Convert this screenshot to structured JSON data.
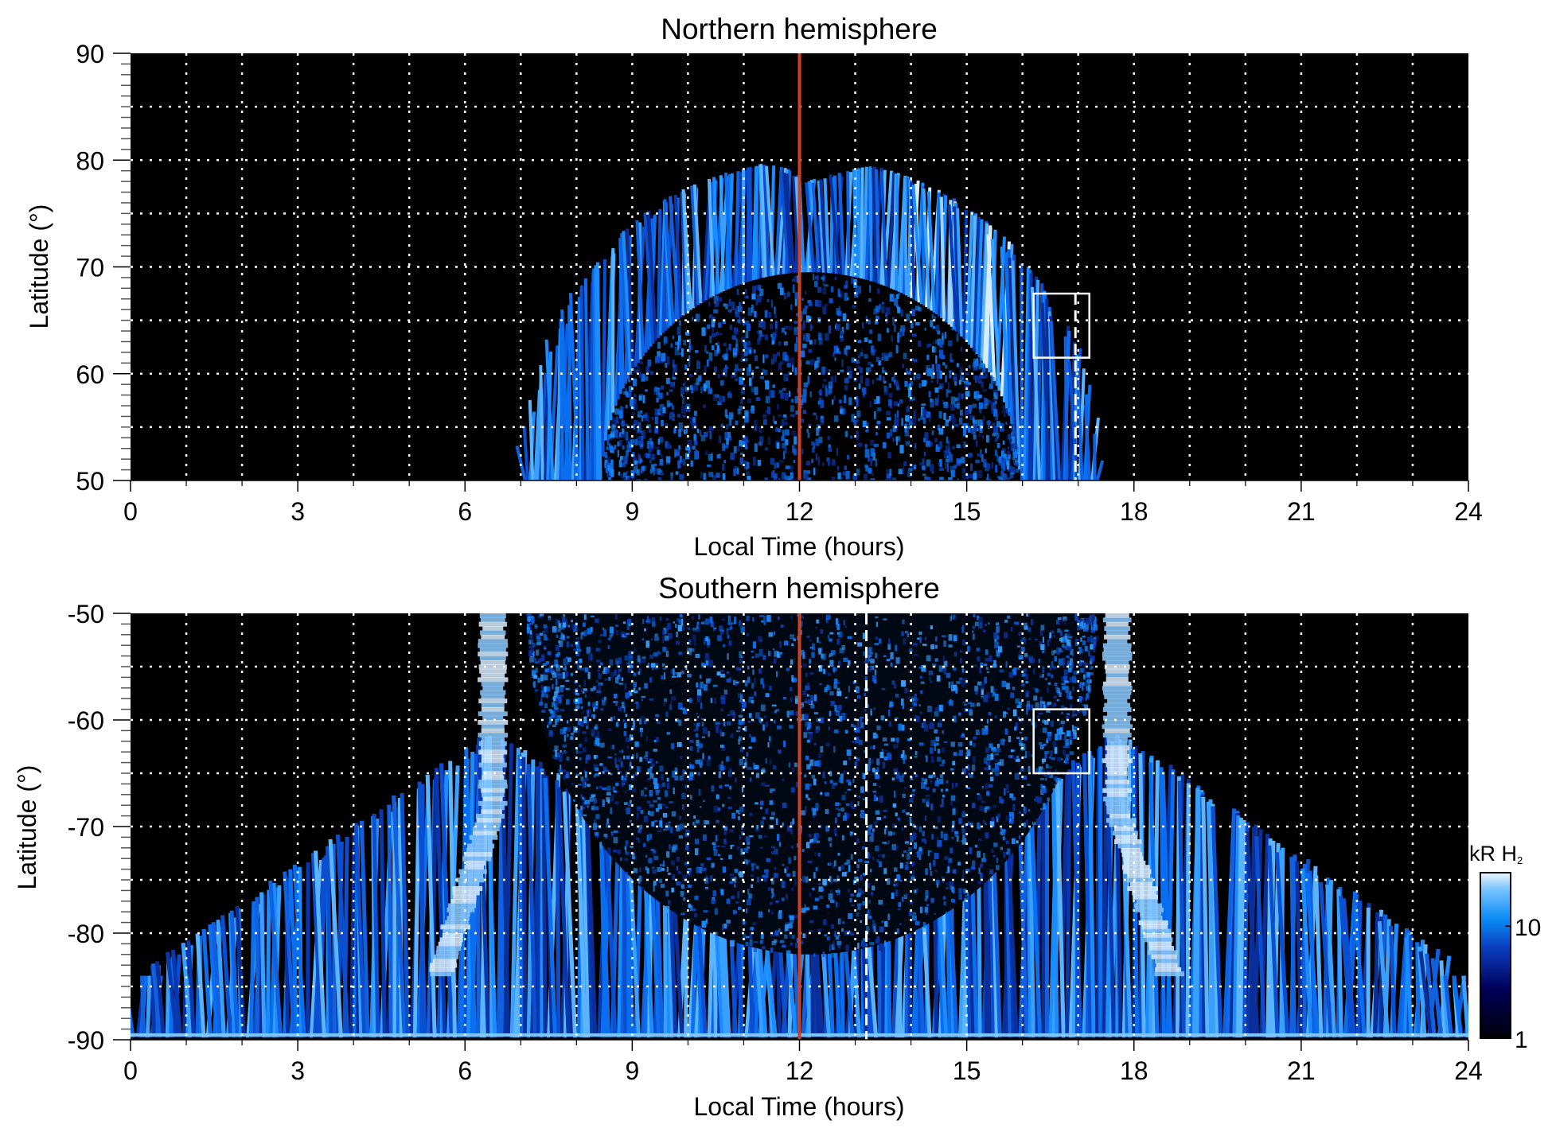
{
  "chart_data": [
    {
      "type": "heatmap",
      "title": "Northern hemisphere",
      "xlabel": "Local Time (hours)",
      "ylabel": "Latitude (°)",
      "xlim": [
        0,
        24
      ],
      "ylim": [
        50,
        90
      ],
      "xticks": [
        "0",
        "3",
        "6",
        "9",
        "12",
        "15",
        "18",
        "21",
        "24"
      ],
      "yticks": [
        "50",
        "60",
        "70",
        "80",
        "90"
      ],
      "grid": true,
      "noon_line_lt": 12,
      "dashed_line_lt": 16.95,
      "box": {
        "lt": [
          16.2,
          17.2
        ],
        "lat": [
          61.5,
          67.5
        ]
      },
      "oval": {
        "outer_lt_range": [
          7.0,
          17.3
        ],
        "outer_peak_lat": 80,
        "inner_lt_range": [
          8.5,
          15.9
        ],
        "inner_peak_lat": 69
      }
    },
    {
      "type": "heatmap",
      "title": "Southern hemisphere",
      "xlabel": "Local Time (hours)",
      "ylabel": "Latitude (°)",
      "xlim": [
        0,
        24
      ],
      "ylim": [
        -90,
        -50
      ],
      "xticks": [
        "0",
        "3",
        "6",
        "9",
        "12",
        "15",
        "18",
        "21",
        "24"
      ],
      "yticks": [
        "-90",
        "-80",
        "-70",
        "-60",
        "-50"
      ],
      "grid": true,
      "noon_line_lt": 12,
      "dashed_line_lt": 13.2,
      "box": {
        "lt": [
          16.2,
          17.2
        ],
        "lat": [
          -65,
          -59
        ]
      },
      "bright_arcs_lt": [
        6.5,
        17.7
      ]
    }
  ],
  "colorbar": {
    "label": "kR H",
    "label_sub": "2",
    "scale": "log",
    "range": [
      1,
      30
    ],
    "ticks": [
      "1",
      "10"
    ]
  },
  "colors": {
    "noon_line": "#d2401c",
    "background": "#000000",
    "aurora": "#1a8cff"
  }
}
